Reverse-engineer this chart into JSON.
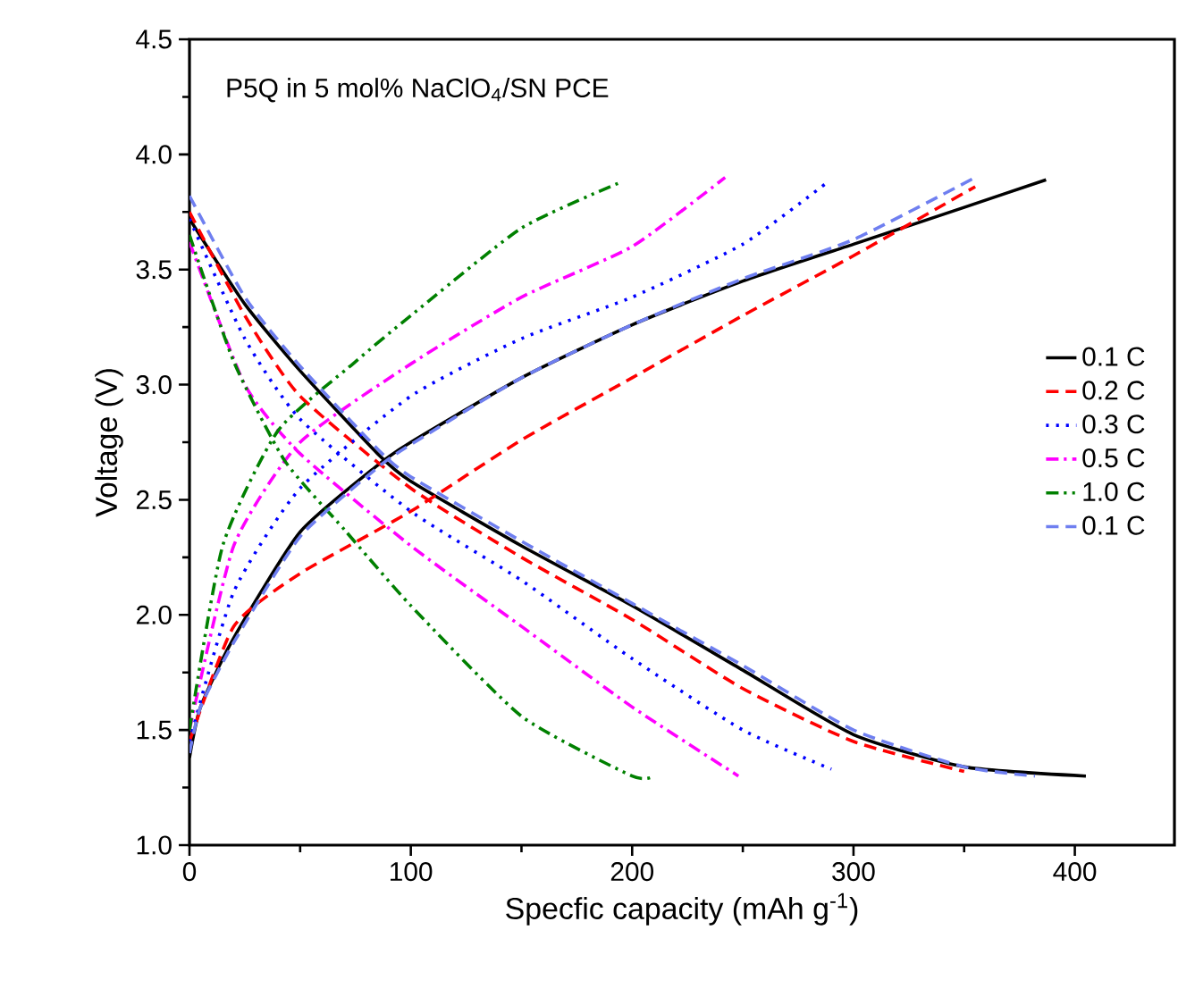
{
  "chart_data": {
    "type": "line",
    "xlabel": "Specfic capacity (mAh g$^{-1}$)",
    "ylabel": "Voltage (V)",
    "annotations": [
      "P5Q in 5 mol% NaClO$_{4}$/SN PCE"
    ],
    "xlim": [
      0,
      445
    ],
    "ylim": [
      1.0,
      4.5
    ],
    "xticks": [
      0,
      100,
      200,
      300,
      400
    ],
    "yticks": [
      {
        "value": 1.0,
        "label": "1.0"
      },
      {
        "value": 1.5,
        "label": "1.5"
      },
      {
        "value": 2.0,
        "label": "2.0"
      },
      {
        "value": 2.5,
        "label": "2.5"
      },
      {
        "value": 3.0,
        "label": "3.0"
      },
      {
        "value": 3.5,
        "label": "3.5"
      },
      {
        "value": 4.0,
        "label": "4.0"
      },
      {
        "value": 4.5,
        "label": "4.5"
      }
    ],
    "legend": "right",
    "grid": false,
    "marker": "none",
    "series": [
      {
        "name": "0.1 C",
        "color": "#000000",
        "line_style": "solid",
        "x": [
          0,
          5,
          20,
          50,
          85,
          100,
          150,
          200,
          250,
          300,
          350,
          387
        ],
        "values": [
          1.38,
          1.6,
          1.9,
          2.36,
          2.65,
          2.75,
          3.03,
          3.26,
          3.45,
          3.61,
          3.77,
          3.89
        ]
      },
      {
        "color": "#000000",
        "line_style": "solid",
        "x": [
          0,
          25,
          50,
          85,
          100,
          150,
          200,
          250,
          300,
          350,
          405
        ],
        "values": [
          3.72,
          3.35,
          3.06,
          2.7,
          2.58,
          2.3,
          2.04,
          1.76,
          1.48,
          1.34,
          1.3
        ]
      },
      {
        "name": "0.2 C",
        "color": "#ff0000",
        "line_style": "dashed",
        "x": [
          0,
          20,
          50,
          100,
          150,
          200,
          250,
          300,
          355
        ],
        "values": [
          1.45,
          1.95,
          2.18,
          2.45,
          2.76,
          3.03,
          3.3,
          3.56,
          3.86
        ]
      },
      {
        "color": "#ff0000",
        "line_style": "dashed",
        "x": [
          0,
          25,
          50,
          100,
          150,
          200,
          250,
          300,
          350
        ],
        "values": [
          3.75,
          3.3,
          2.95,
          2.55,
          2.25,
          1.98,
          1.68,
          1.45,
          1.32
        ]
      },
      {
        "name": "0.3 C",
        "color": "#0000ff",
        "line_style": "dotted",
        "x": [
          0,
          20,
          50,
          100,
          150,
          200,
          250,
          287
        ],
        "values": [
          1.45,
          2.1,
          2.55,
          2.95,
          3.2,
          3.38,
          3.61,
          3.87
        ]
      },
      {
        "color": "#0000ff",
        "line_style": "dotted",
        "x": [
          0,
          25,
          50,
          100,
          150,
          200,
          250,
          290
        ],
        "values": [
          3.72,
          3.2,
          2.85,
          2.45,
          2.15,
          1.81,
          1.5,
          1.33
        ]
      },
      {
        "name": "0.5 C",
        "color": "#ff00ff",
        "line_style": "dashdotted",
        "x": [
          0,
          20,
          50,
          100,
          150,
          200,
          242
        ],
        "values": [
          1.5,
          2.3,
          2.75,
          3.09,
          3.38,
          3.6,
          3.9
        ]
      },
      {
        "color": "#ff00ff",
        "line_style": "dashdotted",
        "x": [
          0,
          25,
          50,
          100,
          150,
          200,
          248
        ],
        "values": [
          3.62,
          3.0,
          2.7,
          2.3,
          1.95,
          1.6,
          1.3
        ]
      },
      {
        "name": "1.0 C",
        "color": "#008000",
        "line_style": "dashdotdotted",
        "x": [
          0,
          15,
          40,
          75,
          100,
          150,
          195
        ],
        "values": [
          1.5,
          2.3,
          2.8,
          3.1,
          3.3,
          3.68,
          3.88
        ]
      },
      {
        "color": "#008000",
        "line_style": "dashdotdotted",
        "x": [
          0,
          20,
          43,
          70,
          100,
          150,
          200,
          210
        ],
        "values": [
          3.65,
          3.1,
          2.67,
          2.37,
          2.04,
          1.56,
          1.3,
          1.3
        ]
      },
      {
        "name": "0.1 C",
        "color": "#6f7ff0",
        "line_style": "dashed",
        "x": [
          0,
          5,
          20,
          50,
          85,
          100,
          150,
          200,
          250,
          300,
          355
        ],
        "values": [
          1.4,
          1.6,
          1.88,
          2.34,
          2.64,
          2.74,
          3.03,
          3.26,
          3.46,
          3.63,
          3.9
        ]
      },
      {
        "color": "#6f7ff0",
        "line_style": "dashed",
        "x": [
          0,
          25,
          50,
          85,
          100,
          150,
          200,
          250,
          300,
          350,
          382
        ],
        "values": [
          3.82,
          3.38,
          3.08,
          2.72,
          2.6,
          2.32,
          2.05,
          1.78,
          1.5,
          1.34,
          1.3
        ]
      }
    ]
  }
}
